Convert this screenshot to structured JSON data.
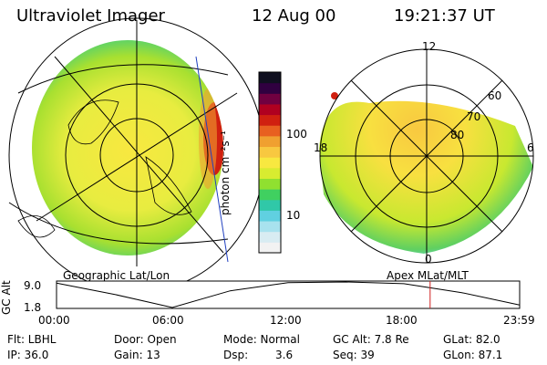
{
  "header": {
    "instrument": "Ultraviolet Imager",
    "date": "12 Aug 00",
    "time": "19:21:37 UT"
  },
  "colorbar": {
    "label": "photon cm⁻²s⁻¹",
    "ticks": [
      "100",
      "10"
    ],
    "scale": [
      "#f2f2f2",
      "#d8ecf2",
      "#a8e2ee",
      "#60d0e0",
      "#30c8a8",
      "#40d060",
      "#90e030",
      "#d8ec30",
      "#f8e840",
      "#f8c840",
      "#f0a030",
      "#e86020",
      "#d02010",
      "#b00020",
      "#700040",
      "#300040",
      "#101020"
    ]
  },
  "geo_panel": {
    "label": "Geographic Lat/Lon"
  },
  "mag_panel": {
    "label": "Apex MLat/MLT",
    "mlt_labels": {
      "top": "12",
      "left": "18",
      "right": "6",
      "bottom": "0"
    },
    "lat_labels": [
      "60",
      "70",
      "80"
    ]
  },
  "orbit_plot": {
    "ylabel": "GC Alt",
    "y_ticks": [
      "9.0",
      "1.8"
    ],
    "x_ticks": [
      "00:00",
      "06:00",
      "12:00",
      "18:00",
      "23:59"
    ],
    "current_time_marker": "19:21:37",
    "altitude_profile": [
      {
        "t": 0,
        "alt": 8.7
      },
      {
        "t": 3,
        "alt": 5.5
      },
      {
        "t": 6,
        "alt": 1.8
      },
      {
        "t": 9,
        "alt": 6.5
      },
      {
        "t": 12,
        "alt": 8.8
      },
      {
        "t": 15,
        "alt": 9.0
      },
      {
        "t": 18,
        "alt": 8.5
      },
      {
        "t": 21,
        "alt": 6.0
      },
      {
        "t": 24,
        "alt": 2.5
      }
    ]
  },
  "status": {
    "flt": "Flt: LBHL",
    "ip": "IP: 36.0",
    "door": "Door: Open",
    "gain": "Gain: 13",
    "mode": "Mode: Normal",
    "dsp_label": "Dsp:",
    "dsp_value": "3.6",
    "gc_alt": "GC Alt: 7.8 Re",
    "seq": "Seq: 39",
    "glat": "GLat: 82.0",
    "glon": "GLon: 87.1"
  }
}
